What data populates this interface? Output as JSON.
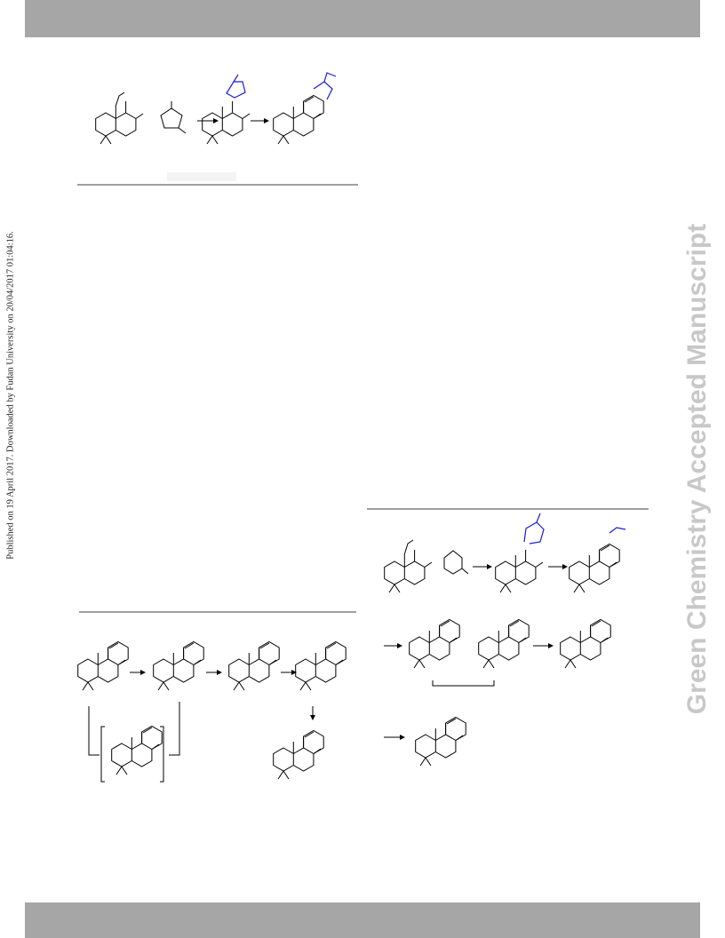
{
  "sidebar": {
    "published": "Published on 19 April 2017. Downloaded by Fudan University on 20/04/2017 01:04:16.",
    "watermark": "Green Chemistry Accepted Manuscript"
  }
}
